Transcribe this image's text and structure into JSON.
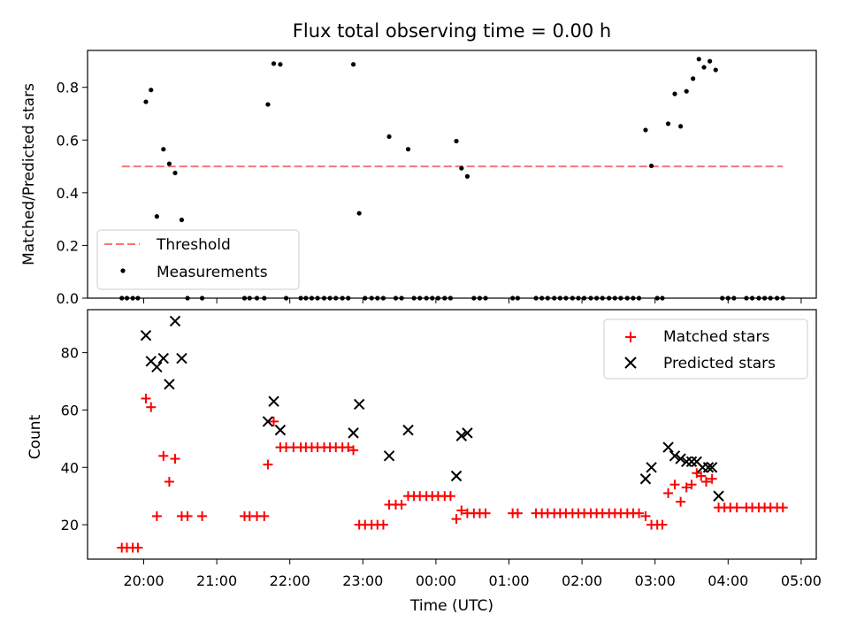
{
  "title": "Flux total observing time = 0.00 h",
  "xlabel": "Time (UTC)",
  "xticks": [
    "20:00",
    "21:00",
    "22:00",
    "23:00",
    "00:00",
    "01:00",
    "02:00",
    "03:00",
    "04:00",
    "05:00"
  ],
  "colors": {
    "threshold": "#f87676",
    "measurements": "#000000",
    "matched": "#ff0000",
    "predicted": "#000000"
  },
  "chart_data": [
    {
      "type": "scatter",
      "title": "Flux total observing time = 0.00 h",
      "xlabel": "",
      "ylabel": "Matched/Predicted stars",
      "ylim": [
        0,
        0.94
      ],
      "yticks": [
        "0.0",
        "0.2",
        "0.4",
        "0.6",
        "0.8"
      ],
      "x_axis": "time (UTC), hours since 20:00",
      "threshold": {
        "name": "Threshold",
        "value": 0.5,
        "x_range": [
          -0.3,
          8.75
        ]
      },
      "legend_position": "lower-left",
      "series": [
        {
          "name": "Measurements",
          "points": [
            [
              -0.3,
              0
            ],
            [
              -0.23,
              0
            ],
            [
              -0.15,
              0
            ],
            [
              -0.08,
              0
            ],
            [
              0.03,
              0.745
            ],
            [
              0.1,
              0.79
            ],
            [
              0.18,
              0.31
            ],
            [
              0.27,
              0.565
            ],
            [
              0.35,
              0.51
            ],
            [
              0.43,
              0.475
            ],
            [
              0.52,
              0.297
            ],
            [
              0.6,
              0
            ],
            [
              0.8,
              0
            ],
            [
              1.38,
              0
            ],
            [
              1.45,
              0
            ],
            [
              1.55,
              0
            ],
            [
              1.65,
              0
            ],
            [
              1.7,
              0.735
            ],
            [
              1.78,
              0.89
            ],
            [
              1.87,
              0.887
            ],
            [
              1.95,
              0
            ],
            [
              2.15,
              0
            ],
            [
              2.22,
              0
            ],
            [
              2.3,
              0
            ],
            [
              2.38,
              0
            ],
            [
              2.47,
              0
            ],
            [
              2.55,
              0
            ],
            [
              2.63,
              0
            ],
            [
              2.72,
              0
            ],
            [
              2.8,
              0
            ],
            [
              2.87,
              0.887
            ],
            [
              2.95,
              0.322
            ],
            [
              3.03,
              0
            ],
            [
              3.12,
              0
            ],
            [
              3.2,
              0
            ],
            [
              3.28,
              0
            ],
            [
              3.36,
              0.613
            ],
            [
              3.45,
              0
            ],
            [
              3.53,
              0
            ],
            [
              3.62,
              0.565
            ],
            [
              3.7,
              0
            ],
            [
              3.78,
              0
            ],
            [
              3.87,
              0
            ],
            [
              3.95,
              0
            ],
            [
              4.03,
              0
            ],
            [
              4.12,
              0
            ],
            [
              4.2,
              0
            ],
            [
              4.28,
              0.596
            ],
            [
              4.35,
              0.493
            ],
            [
              4.43,
              0.462
            ],
            [
              4.52,
              0
            ],
            [
              4.6,
              0
            ],
            [
              4.68,
              0
            ],
            [
              5.05,
              0
            ],
            [
              5.12,
              0
            ],
            [
              5.37,
              0
            ],
            [
              5.45,
              0
            ],
            [
              5.53,
              0
            ],
            [
              5.62,
              0
            ],
            [
              5.7,
              0
            ],
            [
              5.78,
              0
            ],
            [
              5.87,
              0
            ],
            [
              5.95,
              0
            ],
            [
              6.03,
              0
            ],
            [
              6.12,
              0
            ],
            [
              6.2,
              0
            ],
            [
              6.28,
              0
            ],
            [
              6.37,
              0
            ],
            [
              6.45,
              0
            ],
            [
              6.53,
              0
            ],
            [
              6.62,
              0
            ],
            [
              6.7,
              0
            ],
            [
              6.78,
              0
            ],
            [
              6.87,
              0.638
            ],
            [
              6.95,
              0.502
            ],
            [
              7.03,
              0
            ],
            [
              7.1,
              0
            ],
            [
              7.18,
              0.662
            ],
            [
              7.27,
              0.775
            ],
            [
              7.35,
              0.652
            ],
            [
              7.43,
              0.785
            ],
            [
              7.52,
              0.833
            ],
            [
              7.6,
              0.907
            ],
            [
              7.67,
              0.876
            ],
            [
              7.75,
              0.899
            ],
            [
              7.83,
              0.866
            ],
            [
              7.92,
              0
            ],
            [
              8.0,
              0
            ],
            [
              8.08,
              0
            ],
            [
              8.25,
              0
            ],
            [
              8.33,
              0
            ],
            [
              8.42,
              0
            ],
            [
              8.5,
              0
            ],
            [
              8.58,
              0
            ],
            [
              8.67,
              0
            ],
            [
              8.75,
              0
            ]
          ]
        }
      ]
    },
    {
      "type": "scatter",
      "xlabel": "Time (UTC)",
      "ylabel": "Count",
      "ylim": [
        8,
        95
      ],
      "yticks": [
        "20",
        "40",
        "60",
        "80"
      ],
      "x_axis": "time (UTC), hours since 20:00",
      "legend_position": "top-right",
      "series": [
        {
          "name": "Matched stars",
          "points": [
            [
              -0.3,
              12
            ],
            [
              -0.23,
              12
            ],
            [
              -0.15,
              12
            ],
            [
              -0.08,
              12
            ],
            [
              0.03,
              64
            ],
            [
              0.1,
              61
            ],
            [
              0.18,
              23
            ],
            [
              0.27,
              44
            ],
            [
              0.35,
              35
            ],
            [
              0.43,
              43
            ],
            [
              0.52,
              23
            ],
            [
              0.6,
              23
            ],
            [
              0.8,
              23
            ],
            [
              1.38,
              23
            ],
            [
              1.45,
              23
            ],
            [
              1.55,
              23
            ],
            [
              1.65,
              23
            ],
            [
              1.7,
              41
            ],
            [
              1.78,
              56
            ],
            [
              1.87,
              47
            ],
            [
              1.95,
              47
            ],
            [
              2.05,
              47
            ],
            [
              2.15,
              47
            ],
            [
              2.22,
              47
            ],
            [
              2.3,
              47
            ],
            [
              2.38,
              47
            ],
            [
              2.47,
              47
            ],
            [
              2.55,
              47
            ],
            [
              2.63,
              47
            ],
            [
              2.72,
              47
            ],
            [
              2.8,
              47
            ],
            [
              2.87,
              46
            ],
            [
              2.95,
              20
            ],
            [
              3.03,
              20
            ],
            [
              3.12,
              20
            ],
            [
              3.2,
              20
            ],
            [
              3.28,
              20
            ],
            [
              3.36,
              27
            ],
            [
              3.45,
              27
            ],
            [
              3.53,
              27
            ],
            [
              3.62,
              30
            ],
            [
              3.7,
              30
            ],
            [
              3.78,
              30
            ],
            [
              3.87,
              30
            ],
            [
              3.95,
              30
            ],
            [
              4.03,
              30
            ],
            [
              4.12,
              30
            ],
            [
              4.2,
              30
            ],
            [
              4.28,
              22
            ],
            [
              4.35,
              25
            ],
            [
              4.43,
              24
            ],
            [
              4.52,
              24
            ],
            [
              4.6,
              24
            ],
            [
              4.68,
              24
            ],
            [
              5.05,
              24
            ],
            [
              5.12,
              24
            ],
            [
              5.37,
              24
            ],
            [
              5.45,
              24
            ],
            [
              5.53,
              24
            ],
            [
              5.62,
              24
            ],
            [
              5.7,
              24
            ],
            [
              5.78,
              24
            ],
            [
              5.87,
              24
            ],
            [
              5.95,
              24
            ],
            [
              6.03,
              24
            ],
            [
              6.12,
              24
            ],
            [
              6.2,
              24
            ],
            [
              6.28,
              24
            ],
            [
              6.37,
              24
            ],
            [
              6.45,
              24
            ],
            [
              6.53,
              24
            ],
            [
              6.62,
              24
            ],
            [
              6.7,
              24
            ],
            [
              6.78,
              24
            ],
            [
              6.87,
              23
            ],
            [
              6.95,
              20
            ],
            [
              7.03,
              20
            ],
            [
              7.1,
              20
            ],
            [
              7.18,
              31
            ],
            [
              7.27,
              34
            ],
            [
              7.35,
              28
            ],
            [
              7.43,
              33
            ],
            [
              7.5,
              34
            ],
            [
              7.57,
              38
            ],
            [
              7.63,
              37
            ],
            [
              7.7,
              35
            ],
            [
              7.78,
              36
            ],
            [
              7.87,
              26
            ],
            [
              7.95,
              26
            ],
            [
              8.03,
              26
            ],
            [
              8.12,
              26
            ],
            [
              8.25,
              26
            ],
            [
              8.33,
              26
            ],
            [
              8.42,
              26
            ],
            [
              8.5,
              26
            ],
            [
              8.58,
              26
            ],
            [
              8.67,
              26
            ],
            [
              8.75,
              26
            ]
          ]
        },
        {
          "name": "Predicted stars",
          "points": [
            [
              0.03,
              86
            ],
            [
              0.1,
              77
            ],
            [
              0.18,
              75
            ],
            [
              0.27,
              78
            ],
            [
              0.35,
              69
            ],
            [
              0.43,
              91
            ],
            [
              0.52,
              78
            ],
            [
              1.7,
              56
            ],
            [
              1.78,
              63
            ],
            [
              1.87,
              53
            ],
            [
              2.87,
              52
            ],
            [
              2.95,
              62
            ],
            [
              3.36,
              44
            ],
            [
              3.62,
              53
            ],
            [
              4.28,
              37
            ],
            [
              4.35,
              51
            ],
            [
              4.43,
              52
            ],
            [
              6.87,
              36
            ],
            [
              6.95,
              40
            ],
            [
              7.18,
              47
            ],
            [
              7.27,
              44
            ],
            [
              7.35,
              43
            ],
            [
              7.43,
              42
            ],
            [
              7.5,
              42
            ],
            [
              7.57,
              42
            ],
            [
              7.65,
              40
            ],
            [
              7.73,
              40
            ],
            [
              7.78,
              40
            ],
            [
              7.87,
              30
            ]
          ]
        }
      ]
    }
  ]
}
